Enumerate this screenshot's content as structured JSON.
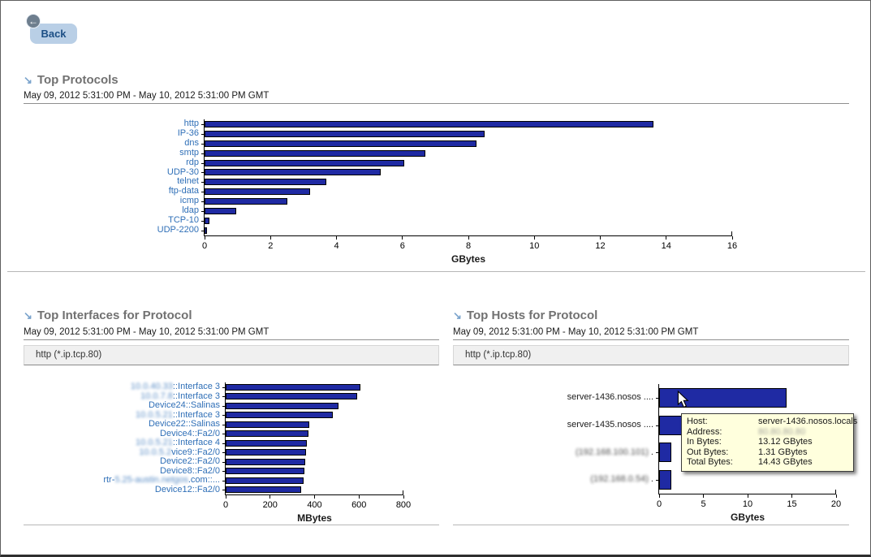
{
  "icons": {
    "back_arrow": "←",
    "section_arrow": "↘"
  },
  "back_button": {
    "label": "Back"
  },
  "sections": {
    "protocols": {
      "title": "Top Protocols",
      "date_range": "May 09, 2012 5:31:00 PM - May 10, 2012 5:31:00 PM GMT"
    },
    "interfaces": {
      "title": "Top Interfaces for Protocol",
      "date_range": "May 09, 2012 5:31:00 PM - May 10, 2012 5:31:00 PM GMT",
      "filter": "http (*.ip.tcp.80)"
    },
    "hosts": {
      "title": "Top Hosts for Protocol",
      "date_range": "May 09, 2012 5:31:00 PM - May 10, 2012 5:31:00 PM GMT",
      "filter": "http (*.ip.tcp.80)"
    }
  },
  "tooltip": {
    "rows": [
      {
        "label": "Host:",
        "value": "server-1436.nosos.locals",
        "blurred": false
      },
      {
        "label": "Address:",
        "value": "80.80.80.80",
        "blurred": true
      },
      {
        "label": "In Bytes:",
        "value": "13.12 GBytes",
        "blurred": false
      },
      {
        "label": "Out Bytes:",
        "value": "1.31 GBytes",
        "blurred": false
      },
      {
        "label": "Total Bytes:",
        "value": "14.43 GBytes",
        "blurred": false
      }
    ]
  },
  "chart_data": [
    {
      "id": "protocols",
      "type": "bar",
      "orientation": "horizontal",
      "title": "Top Protocols",
      "categories": [
        "http",
        "IP-36",
        "dns",
        "smtp",
        "rdp",
        "UDP-30",
        "telnet",
        "ftp-data",
        "icmp",
        "ldap",
        "TCP-10",
        "UDP-2200"
      ],
      "values": [
        13.6,
        8.5,
        8.25,
        6.7,
        6.05,
        5.35,
        3.7,
        3.2,
        2.5,
        0.95,
        0.15,
        0.07
      ],
      "xlabel": "GBytes",
      "xlim": [
        0,
        16
      ],
      "xticks": [
        0,
        2,
        4,
        6,
        8,
        10,
        12,
        14,
        16
      ],
      "bar_color": "#1f2aa3",
      "category_link_color": "#2f6fb7"
    },
    {
      "id": "interfaces",
      "type": "bar",
      "orientation": "horizontal",
      "title": "Top Interfaces for Protocol",
      "categories": [
        [
          {
            "t": "10.0.40.33",
            "b": true
          },
          {
            "t": "::Interface 3",
            "b": false
          }
        ],
        [
          {
            "t": "10.0.7.8",
            "b": true
          },
          {
            "t": "::Interface 3",
            "b": false
          }
        ],
        "Device24::Salinas",
        [
          {
            "t": "10.0.5.21",
            "b": true
          },
          {
            "t": "::Interface 3",
            "b": false
          }
        ],
        "Device22::Salinas",
        "Device4::Fa2/0",
        [
          {
            "t": "10.0.5.21",
            "b": true
          },
          {
            "t": "::Interface 4",
            "b": false
          }
        ],
        [
          {
            "t": "10.0.5.2",
            "b": true
          },
          {
            "t": "vice9::Fa2/0",
            "b": false
          }
        ],
        "Device2::Fa2/0",
        "Device8::Fa2/0",
        [
          {
            "t": "rtr-",
            "b": false
          },
          {
            "t": "5.25-austin.netgos",
            "b": true
          },
          {
            "t": ".com::...",
            "b": false
          }
        ],
        "Device12::Fa2/0"
      ],
      "values": [
        605,
        590,
        508,
        482,
        375,
        372,
        365,
        360,
        357,
        354,
        352,
        338
      ],
      "xlabel": "MBytes",
      "xlim": [
        0,
        800
      ],
      "xticks": [
        0,
        200,
        400,
        600,
        800
      ],
      "bar_color": "#1f2aa3",
      "category_link_color": "#2f6fb7"
    },
    {
      "id": "hosts",
      "type": "bar",
      "orientation": "horizontal",
      "title": "Top Hosts for Protocol",
      "categories": [
        "server-1436.nosos ....",
        "server-1435.nosos ....",
        [
          {
            "t": "(192.168.100.101)",
            "b": true
          },
          {
            "t": " .",
            "b": false
          }
        ],
        [
          {
            "t": "(192.168.0.54)",
            "b": true
          },
          {
            "t": " .",
            "b": false
          }
        ]
      ],
      "values": [
        14.4,
        13.9,
        1.4,
        1.4
      ],
      "xlabel": "GBytes",
      "xlim": [
        0,
        20
      ],
      "xticks": [
        0,
        5,
        10,
        15,
        20
      ],
      "bar_color": "#1f2aa3",
      "category_link_color": "#1c1c1c"
    }
  ]
}
